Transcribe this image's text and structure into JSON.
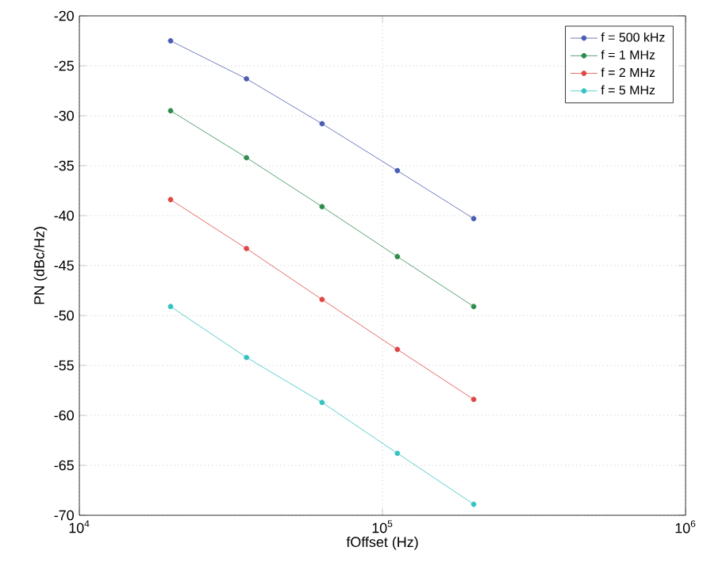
{
  "chart_data": {
    "type": "line",
    "xlabel": "fOffset (Hz)",
    "ylabel": "PN (dBc/Hz)",
    "log": "x",
    "grid": true,
    "legend": "top right",
    "marker": "circle",
    "line_style": "solid",
    "x": [
      20000,
      35600,
      63200,
      112000,
      200000
    ],
    "xlim": [
      10000,
      1000000
    ],
    "ylim": [
      -70,
      -20
    ],
    "xticks": [
      {
        "value": 10000,
        "label": "10$^{4}$"
      },
      {
        "value": 100000,
        "label": "10$^{5}$"
      },
      {
        "value": 1000000,
        "label": "10$^{6}$"
      }
    ],
    "yticks": [
      -70,
      -65,
      -60,
      -55,
      -50,
      -45,
      -40,
      -35,
      -30,
      -25,
      -20
    ],
    "series": [
      {
        "name": "f = 500 kHz",
        "color": "#4a5cb4",
        "values": [
          -22.5,
          -26.3,
          -30.8,
          -35.5,
          -40.3
        ]
      },
      {
        "name": "f = 1 MHz",
        "color": "#2e8b4e",
        "values": [
          -29.5,
          -34.2,
          -39.1,
          -44.1,
          -49.1
        ]
      },
      {
        "name": "f = 2 MHz",
        "color": "#e04545",
        "values": [
          -38.4,
          -43.3,
          -48.4,
          -53.4,
          -58.4
        ]
      },
      {
        "name": "f = 5 MHz",
        "color": "#35c2c2",
        "values": [
          -49.1,
          -54.2,
          -58.7,
          -63.8,
          -68.9
        ]
      }
    ]
  }
}
